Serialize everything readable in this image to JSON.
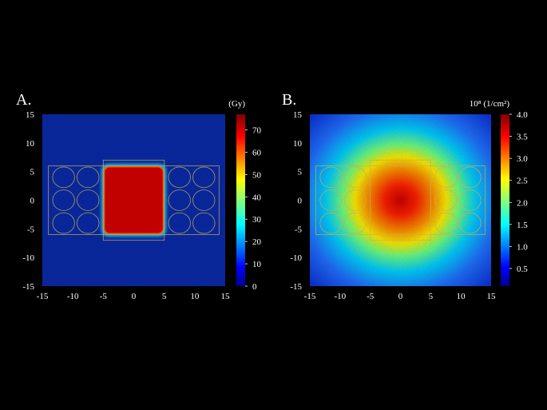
{
  "chart_data": [
    {
      "type": "heatmap",
      "panel_label": "A.",
      "colorbar_label": "(Gy)",
      "xlim": [
        -15,
        15
      ],
      "ylim": [
        -15,
        15
      ],
      "x_ticks": [
        -15,
        -10,
        -5,
        0,
        5,
        10,
        15
      ],
      "y_ticks": [
        15,
        10,
        5,
        0,
        -5,
        -10,
        -15
      ],
      "colorbar_range": [
        0,
        77
      ],
      "colorbar_ticks": [
        0,
        10,
        20,
        30,
        40,
        50,
        60,
        70
      ],
      "field": {
        "shape": "rectangle",
        "x": [
          -5,
          5
        ],
        "y": [
          -6,
          6
        ],
        "peak": 75,
        "background": 3
      },
      "outlines": {
        "rectangles": [
          {
            "x": [
              -14,
              14
            ],
            "y": [
              -6,
              6
            ]
          },
          {
            "x": [
              -5,
              5
            ],
            "y": [
              -7,
              7
            ]
          }
        ],
        "circle_radius": 1.8,
        "circle_x": [
          -11.5,
          -7.5,
          7.5,
          11.5
        ],
        "circle_y": [
          4,
          0,
          -4
        ]
      },
      "colormap": "jet",
      "background_color": "#000000"
    },
    {
      "type": "heatmap",
      "panel_label": "B.",
      "colorbar_label": "10⁸ (1/cm²)",
      "xlim": [
        -15,
        15
      ],
      "ylim": [
        -15,
        15
      ],
      "x_ticks": [
        -15,
        -10,
        -5,
        0,
        5,
        10,
        15
      ],
      "y_ticks": [
        15,
        10,
        5,
        0,
        -5,
        -10,
        -15
      ],
      "colorbar_range": [
        0.1,
        4.0
      ],
      "colorbar_ticks": [
        0.5,
        1.0,
        1.5,
        2.0,
        2.5,
        3.0,
        3.5,
        4.0
      ],
      "field": {
        "shape": "radial",
        "center": [
          0,
          0
        ],
        "peak": 3.8,
        "edge": 0.4
      },
      "outlines": {
        "rectangles": [
          {
            "x": [
              -14,
              14
            ],
            "y": [
              -6,
              6
            ]
          },
          {
            "x": [
              -5,
              5
            ],
            "y": [
              -7,
              7
            ]
          }
        ],
        "circle_radius": 1.8,
        "circle_x": [
          -11.5,
          -7.5,
          7.5,
          11.5
        ],
        "circle_y": [
          4,
          0,
          -4
        ]
      },
      "colormap": "jet",
      "background_color": "#000000"
    }
  ]
}
